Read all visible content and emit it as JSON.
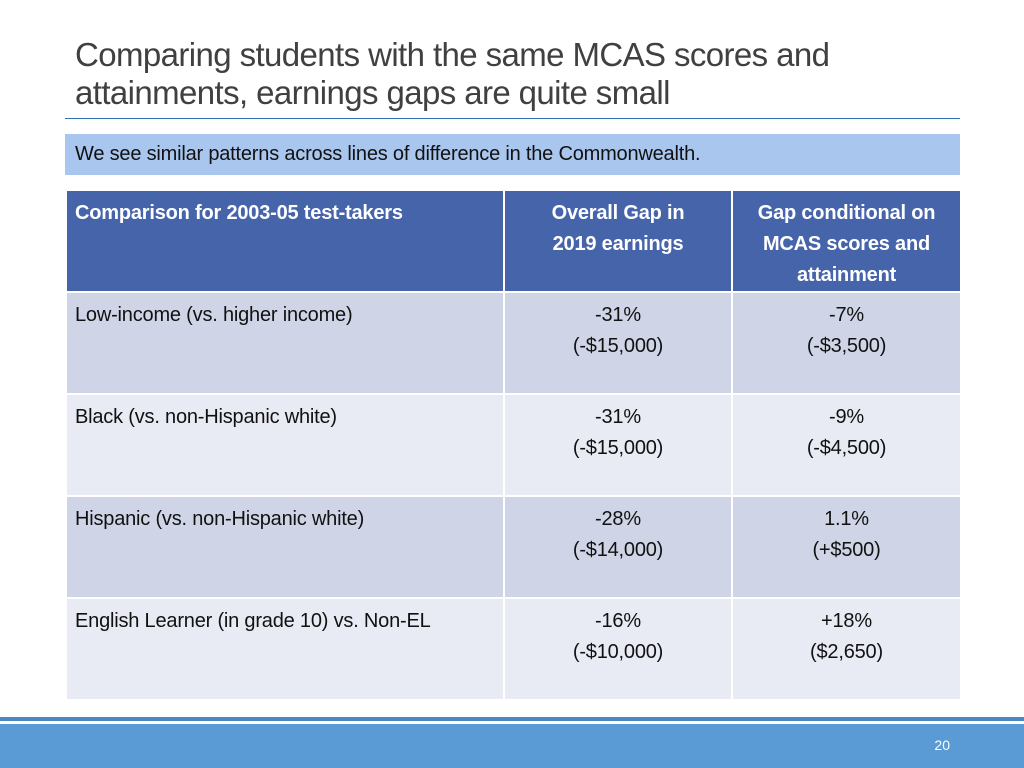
{
  "slide": {
    "title_line1": "Comparing students with the same MCAS scores and",
    "title_line2": "attainments, earnings gaps are quite small",
    "subtitle": "We see similar patterns across lines of difference in the Commonwealth.",
    "page_number": "20"
  },
  "table": {
    "headers": {
      "col1": "Comparison for 2003-05 test-takers",
      "col2_line1": "Overall Gap in",
      "col2_line2": "2019 earnings",
      "col3_line1": "Gap conditional on",
      "col3_line2": "MCAS scores and",
      "col3_line3": "attainment"
    },
    "rows": [
      {
        "label": "Low-income (vs. higher income)",
        "overall_pct": "-31%",
        "overall_amt": "(-$15,000)",
        "cond_pct": "-7%",
        "cond_amt": "(-$3,500)"
      },
      {
        "label": "Black (vs. non-Hispanic white)",
        "overall_pct": "-31%",
        "overall_amt": "(-$15,000)",
        "cond_pct": "-9%",
        "cond_amt": "(-$4,500)"
      },
      {
        "label": "Hispanic (vs. non-Hispanic white)",
        "overall_pct": "-28%",
        "overall_amt": "(-$14,000)",
        "cond_pct": "1.1%",
        "cond_amt": "(+$500)"
      },
      {
        "label": "English Learner (in grade 10) vs. Non-EL",
        "overall_pct": "-16%",
        "overall_amt": "(-$10,000)",
        "cond_pct": "+18%",
        "cond_amt": "($2,650)"
      }
    ]
  },
  "colors": {
    "header_bg": "#4664aa",
    "row_dark": "#cfd5e7",
    "row_light": "#e9ebf4",
    "banner_bg": "#a9c6ee",
    "footer_bg": "#5b9bd5"
  }
}
